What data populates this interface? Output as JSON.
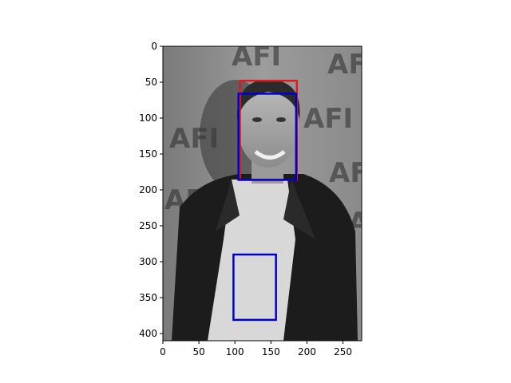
{
  "chart_data": {
    "type": "image-plot",
    "image": {
      "description_name": "grayscale-photo",
      "width": 276,
      "height": 410
    },
    "xlim": [
      0,
      276
    ],
    "ylim": [
      410,
      0
    ],
    "xticks": [
      0,
      50,
      100,
      150,
      200,
      250
    ],
    "yticks": [
      0,
      50,
      100,
      150,
      200,
      250,
      300,
      350,
      400
    ],
    "xtick_labels": [
      "0",
      "50",
      "100",
      "150",
      "200",
      "250"
    ],
    "ytick_labels": [
      "0",
      "50",
      "100",
      "150",
      "200",
      "250",
      "300",
      "350",
      "400"
    ],
    "grid": false,
    "boxes": [
      {
        "name": "red-box",
        "color": "#e31a1c",
        "x0": 107,
        "y0": 48,
        "x1": 186,
        "y1": 186
      },
      {
        "name": "blue-box-face",
        "color": "#0000cc",
        "x0": 105,
        "y0": 66,
        "x1": 185,
        "y1": 186
      },
      {
        "name": "blue-box-body",
        "color": "#0000cc",
        "x0": 98,
        "y0": 290,
        "x1": 157,
        "y1": 381
      }
    ],
    "watermark_logo": "AFI"
  }
}
